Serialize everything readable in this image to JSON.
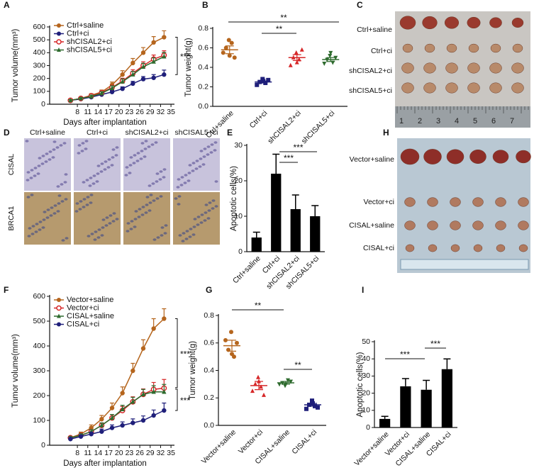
{
  "chart_data": [
    {
      "label": "A",
      "type": "line",
      "xlabel": "Days after implantation",
      "ylabel": "Tumor volume(mm³)",
      "x": [
        6,
        9,
        12,
        15,
        18,
        21,
        24,
        27,
        30,
        33
      ],
      "xlim": [
        0,
        36
      ],
      "xticks": [
        8,
        11,
        14,
        17,
        20,
        23,
        26,
        29,
        32,
        35
      ],
      "ylim": [
        0,
        600
      ],
      "yticks": [
        0,
        100,
        200,
        300,
        400,
        500,
        600
      ],
      "series": [
        {
          "name": "Ctrl+saline",
          "color": "#b5651d",
          "marker": "circle",
          "values": [
            30,
            45,
            70,
            95,
            150,
            230,
            320,
            400,
            480,
            520
          ],
          "errors": [
            5,
            8,
            12,
            15,
            22,
            30,
            35,
            40,
            45,
            50
          ]
        },
        {
          "name": "Ctrl+ci",
          "color": "#1f1f7a",
          "marker": "circle",
          "values": [
            30,
            40,
            55,
            75,
            95,
            120,
            160,
            195,
            205,
            230
          ],
          "errors": [
            5,
            6,
            8,
            10,
            12,
            15,
            18,
            20,
            25,
            35
          ]
        },
        {
          "name": "shCISAL2+ci",
          "color": "#d62728",
          "marker": "open-circle",
          "values": [
            30,
            45,
            65,
            90,
            130,
            180,
            240,
            300,
            350,
            380
          ],
          "errors": [
            5,
            7,
            10,
            12,
            18,
            22,
            28,
            30,
            32,
            35
          ]
        },
        {
          "name": "shCISAL5+ci",
          "color": "#2e6b2e",
          "marker": "triangle",
          "values": [
            30,
            45,
            60,
            85,
            125,
            175,
            230,
            290,
            330,
            370
          ],
          "errors": [
            5,
            7,
            10,
            12,
            18,
            22,
            25,
            28,
            30,
            32
          ]
        }
      ],
      "annotations": [
        "***"
      ]
    },
    {
      "label": "B",
      "type": "dotplot",
      "ylabel": "Tumor weight(g)",
      "categories": [
        "Ctrl+saline",
        "Ctrl+ci",
        "shCISAL2+ci",
        "shCISAL5+ci"
      ],
      "colors": [
        "#b5651d",
        "#1f1f7a",
        "#d62728",
        "#2e6b2e"
      ],
      "markers": [
        "circle",
        "square",
        "triangle",
        "triangle-down"
      ],
      "points": [
        [
          0.55,
          0.6,
          0.68,
          0.65,
          0.5,
          0.52
        ],
        [
          0.22,
          0.25,
          0.28,
          0.24,
          0.27,
          0.26
        ],
        [
          0.42,
          0.5,
          0.55,
          0.48,
          0.58,
          0.45
        ],
        [
          0.44,
          0.48,
          0.52,
          0.45,
          0.5,
          0.55
        ]
      ],
      "means": [
        0.58,
        0.25,
        0.5,
        0.48
      ],
      "errors": [
        0.04,
        0.01,
        0.03,
        0.02
      ],
      "ylim": [
        0,
        0.8
      ],
      "yticks": [
        {
          "value": 0,
          "label": "0.0"
        },
        0.2,
        0.4,
        0.6,
        0.8
      ],
      "annotations": [
        "**",
        "**"
      ]
    },
    {
      "label": "E",
      "type": "bar",
      "ylabel": "Apoptotic cells(%)",
      "categories": [
        "Ctrl+saline",
        "Ctrl+ci",
        "shCISAL2+ci",
        "shCISAL5+ci"
      ],
      "color": "#000000",
      "values": [
        4,
        22,
        12,
        10
      ],
      "errors": [
        1.5,
        5.5,
        4,
        3
      ],
      "ylim": [
        0,
        30
      ],
      "yticks": [
        0,
        10,
        20,
        30
      ],
      "annotations": [
        "***",
        "***"
      ]
    },
    {
      "label": "F",
      "type": "line",
      "xlabel": "Days after implantation",
      "ylabel": "Tumor volume(mm³)",
      "x": [
        6,
        9,
        12,
        15,
        18,
        21,
        24,
        27,
        30,
        33
      ],
      "xlim": [
        0,
        36
      ],
      "xticks": [
        8,
        11,
        14,
        17,
        20,
        23,
        26,
        29,
        32,
        35
      ],
      "ylim": [
        0,
        600
      ],
      "yticks": [
        0,
        100,
        200,
        300,
        400,
        500,
        600
      ],
      "series": [
        {
          "name": "Vector+saline",
          "color": "#b5651d",
          "marker": "circle",
          "values": [
            30,
            45,
            70,
            105,
            150,
            210,
            300,
            390,
            470,
            510
          ],
          "errors": [
            5,
            8,
            12,
            15,
            20,
            25,
            30,
            35,
            40,
            40
          ]
        },
        {
          "name": "Vector+ci",
          "color": "#d62728",
          "marker": "open-circle",
          "values": [
            30,
            40,
            55,
            80,
            110,
            140,
            175,
            205,
            225,
            230
          ],
          "errors": [
            5,
            6,
            8,
            10,
            14,
            16,
            20,
            22,
            28,
            35
          ]
        },
        {
          "name": "CISAL+saline",
          "color": "#2e6b2e",
          "marker": "triangle",
          "values": [
            30,
            40,
            55,
            80,
            110,
            145,
            175,
            205,
            215,
            215
          ],
          "errors": [
            5,
            6,
            8,
            10,
            14,
            16,
            18,
            20,
            25,
            30
          ]
        },
        {
          "name": "CISAL+ci",
          "color": "#1f1f7a",
          "marker": "circle",
          "values": [
            25,
            35,
            45,
            55,
            70,
            80,
            90,
            100,
            120,
            140
          ],
          "errors": [
            5,
            6,
            8,
            10,
            12,
            14,
            16,
            18,
            22,
            30
          ]
        }
      ],
      "annotations": [
        "***",
        "***"
      ]
    },
    {
      "label": "G",
      "type": "dotplot",
      "ylabel": "Tumor weight(g)",
      "categories": [
        "Vector+saline",
        "Vector+ci",
        "CISAL+saline",
        "CISAL+ci"
      ],
      "colors": [
        "#b5651d",
        "#d62728",
        "#2e6b2e",
        "#1f1f7a"
      ],
      "markers": [
        "circle",
        "triangle",
        "triangle-down",
        "square"
      ],
      "points": [
        [
          0.62,
          0.55,
          0.68,
          0.5,
          0.6,
          0.52
        ],
        [
          0.25,
          0.3,
          0.35,
          0.28,
          0.22,
          0.32
        ],
        [
          0.3,
          0.31,
          0.29,
          0.33,
          0.32,
          0.3
        ],
        [
          0.12,
          0.15,
          0.18,
          0.14,
          0.13,
          0.16
        ]
      ],
      "means": [
        0.58,
        0.29,
        0.31,
        0.15
      ],
      "errors": [
        0.04,
        0.03,
        0.01,
        0.01
      ],
      "ylim": [
        0,
        0.8
      ],
      "yticks": [
        {
          "value": 0,
          "label": "0.0"
        },
        0.2,
        0.4,
        0.6,
        0.8
      ],
      "annotations": [
        "**",
        "**"
      ]
    },
    {
      "label": "I",
      "type": "bar",
      "ylabel": "Apoptotic cells(%)",
      "categories": [
        "Vector+saline",
        "Vector+ci",
        "CISAL+saline",
        "CISAL+ci"
      ],
      "color": "#000000",
      "values": [
        5,
        24,
        22,
        34
      ],
      "errors": [
        1.5,
        4.5,
        5.5,
        6
      ],
      "ylim": [
        0,
        50
      ],
      "yticks": [
        0,
        10,
        20,
        30,
        40,
        50
      ],
      "annotations": [
        "***",
        "***"
      ]
    }
  ],
  "images": [
    {
      "label": "C",
      "rows": [
        "Ctrl+saline",
        "Ctrl+ci",
        "shCISAL2+ci",
        "shCISAL5+ci"
      ],
      "ruler": [
        "1",
        "2",
        "3",
        "4",
        "5",
        "6",
        "7"
      ]
    },
    {
      "label": "D",
      "columns": [
        "Ctrl+saline",
        "Ctrl+ci",
        "shCISAL2+ci",
        "shCISAL5+ci"
      ],
      "rows": [
        "CISAL",
        "BRCA1"
      ]
    },
    {
      "label": "H",
      "rows": [
        "Vector+saline",
        "Vector+ci",
        "CISAL+saline",
        "CISAL+ci"
      ]
    }
  ]
}
